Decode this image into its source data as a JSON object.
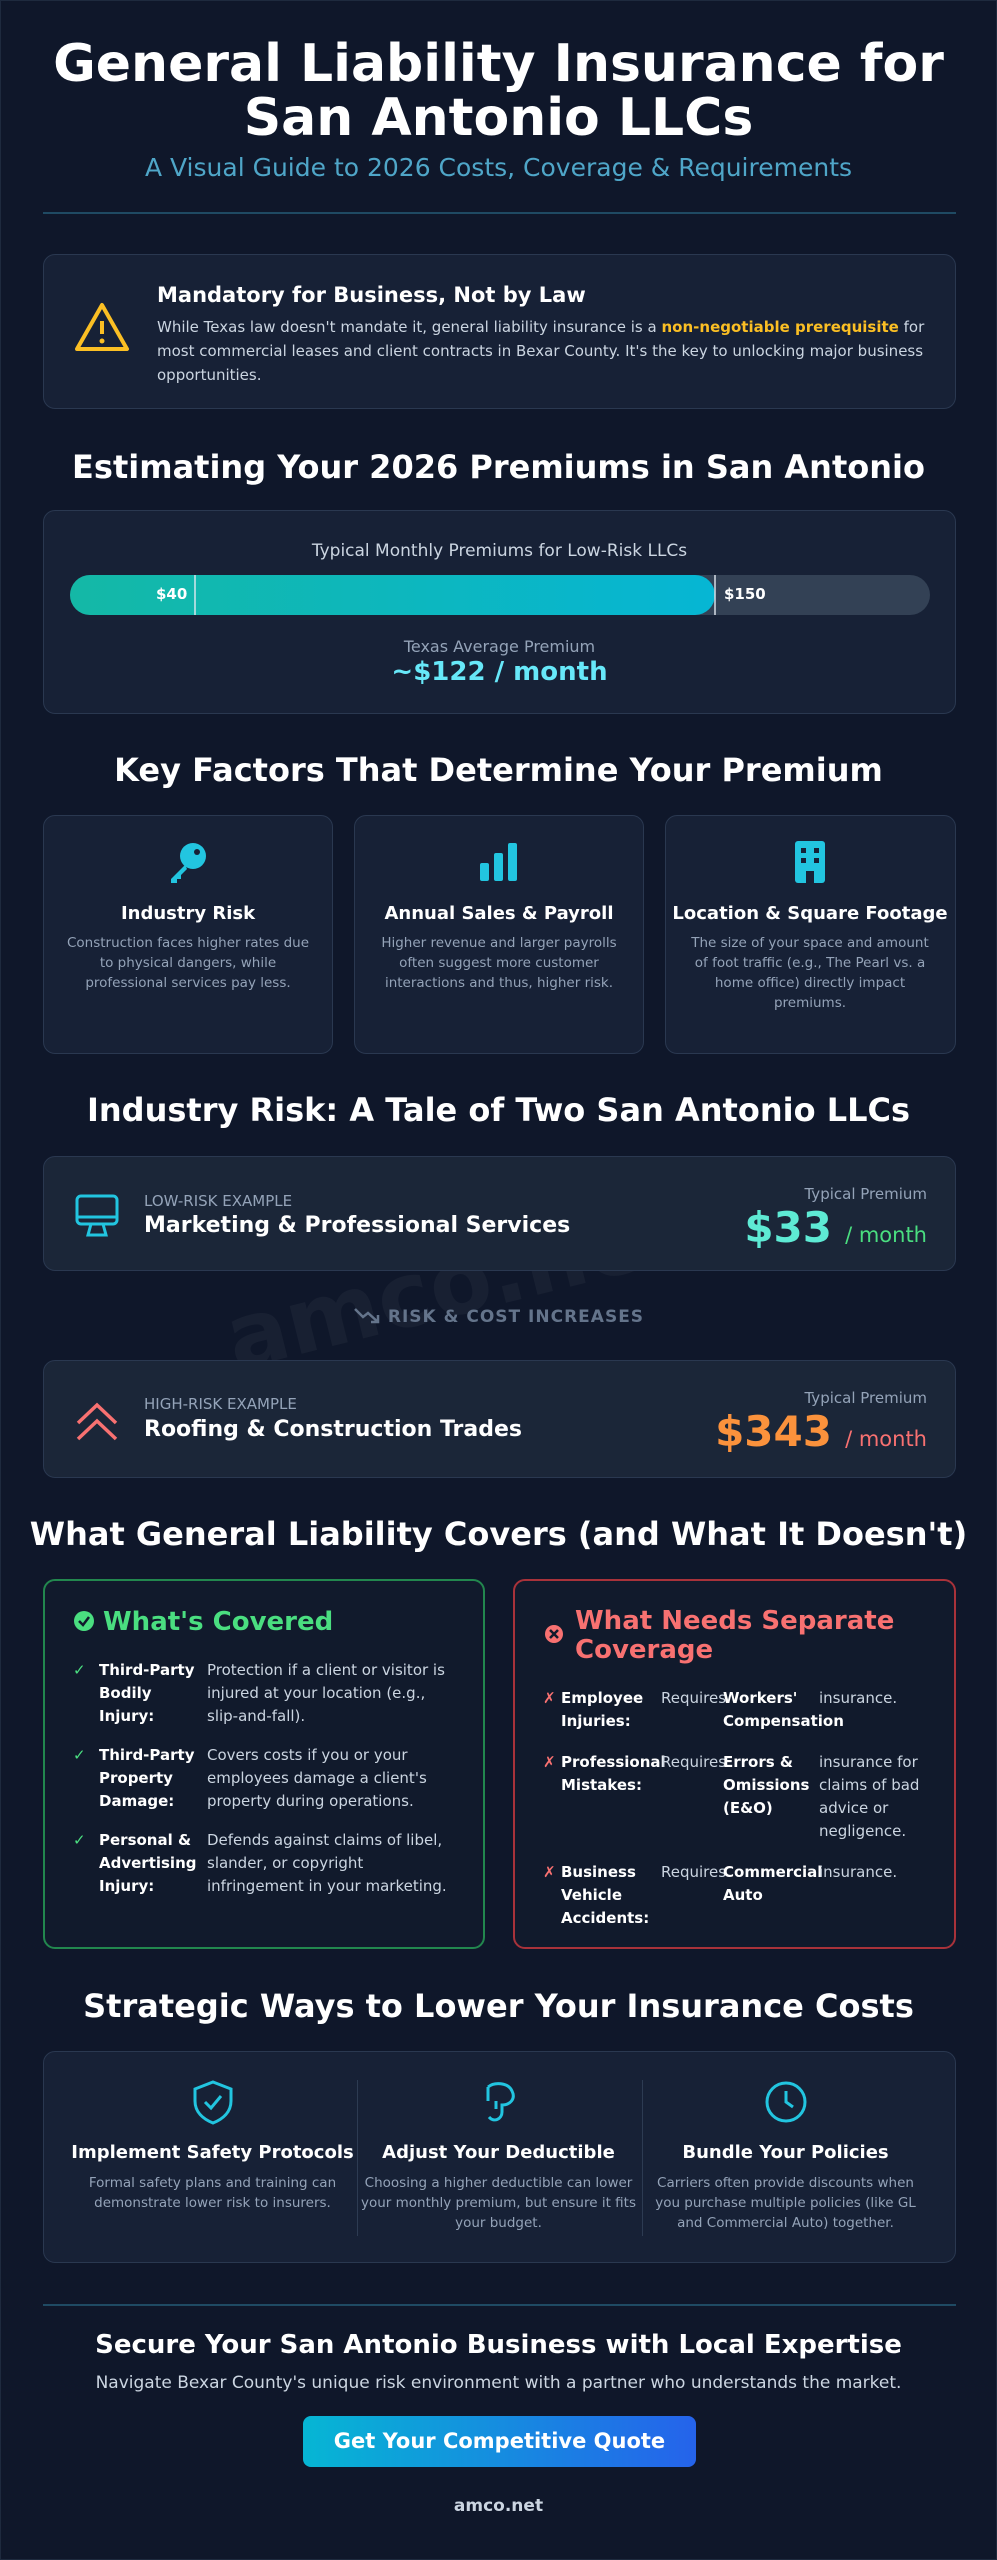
{
  "header": {
    "title_line1": "General Liability Insurance for",
    "title_line2": "San Antonio LLCs",
    "subtitle": "A Visual Guide to 2026 Costs, Coverage & Requirements"
  },
  "alert": {
    "title": "Mandatory for Business, Not by Law",
    "text_before": "While Texas law doesn't mandate it, general liability insurance is a",
    "highlight": "non-negotiable prerequisite",
    "text_after": "for most commercial leases and client contracts in Bexar County. It's the key to unlocking major business opportunities."
  },
  "premiums": {
    "heading": "Estimating Your 2026 Premiums in San Antonio",
    "bar_label": "Typical Monthly Premiums for Low-Risk LLCs",
    "min_label": "$40",
    "max_label": "$150",
    "average_label": "Texas Average Premium",
    "average": "~$122 / month"
  },
  "factors": {
    "heading": "Key Factors That Determine Your Premium",
    "items": [
      {
        "title": "Industry Risk",
        "text": "Construction faces higher rates due to physical dangers, while professional services pay less."
      },
      {
        "title": "Annual Sales & Payroll",
        "text": "Higher revenue and larger payrolls often suggest more customer interactions and thus, higher risk."
      },
      {
        "title": "Location & Square Footage",
        "text": "The size of your space and amount of foot traffic (e.g., The Pearl vs. a home office) directly impact premiums."
      }
    ]
  },
  "industry": {
    "heading": "Industry Risk: A Tale of Two San Antonio LLCs",
    "low": {
      "tag": "LOW-RISK EXAMPLE",
      "name": "Marketing & Professional Services",
      "premium_label": "Typical Premium",
      "premium": "$33",
      "unit": "/ month"
    },
    "divider": "RISK & COST INCREASES",
    "high": {
      "tag": "HIGH-RISK EXAMPLE",
      "name": "Roofing & Construction Trades",
      "premium_label": "Typical Premium",
      "premium": "$343",
      "unit": "/ month"
    }
  },
  "coverage": {
    "heading": "What General Liability Covers (and What It Doesn't)",
    "covered": {
      "title": "What's Covered",
      "items": [
        {
          "term": "Third-Party Bodily Injury:",
          "text": "Protection if a client or visitor is injured at your location (e.g., slip-and-fall)."
        },
        {
          "term": "Third-Party Property Damage:",
          "text": "Covers costs if you or your employees damage a client's property during operations."
        },
        {
          "term": "Personal & Advertising Injury:",
          "text": "Defends against claims of libel, slander, or copyright infringement in your marketing."
        }
      ]
    },
    "excluded": {
      "title": "What Needs Separate Coverage",
      "items": [
        {
          "term": "Employee Injuries:",
          "requires": "Requires",
          "policy": "Workers' Compensation",
          "suffix": "insurance."
        },
        {
          "term": "Professional Mistakes:",
          "requires": "Requires",
          "policy": "Errors & Omissions (E&O)",
          "suffix": "insurance for claims of bad advice or negligence."
        },
        {
          "term": "Business Vehicle Accidents:",
          "requires": "Requires",
          "policy": "Commercial Auto",
          "suffix": "insurance."
        }
      ]
    }
  },
  "strategies": {
    "heading": "Strategic Ways to Lower Your Insurance Costs",
    "items": [
      {
        "title": "Implement Safety Protocols",
        "text": "Formal safety plans and training can demonstrate lower risk to insurers."
      },
      {
        "title": "Adjust Your Deductible",
        "text": "Choosing a higher deductible can lower your monthly premium, but ensure it fits your budget."
      },
      {
        "title": "Bundle Your Policies",
        "text": "Carriers often provide discounts when you purchase multiple policies (like GL and Commercial Auto) together."
      }
    ]
  },
  "cta": {
    "heading": "Secure Your San Antonio Business with Local Expertise",
    "text": "Navigate Bexar County's unique risk environment with a partner who understands the market.",
    "button": "Get Your Competitive Quote",
    "footer": "amco.net"
  },
  "watermark": "amco.net"
}
